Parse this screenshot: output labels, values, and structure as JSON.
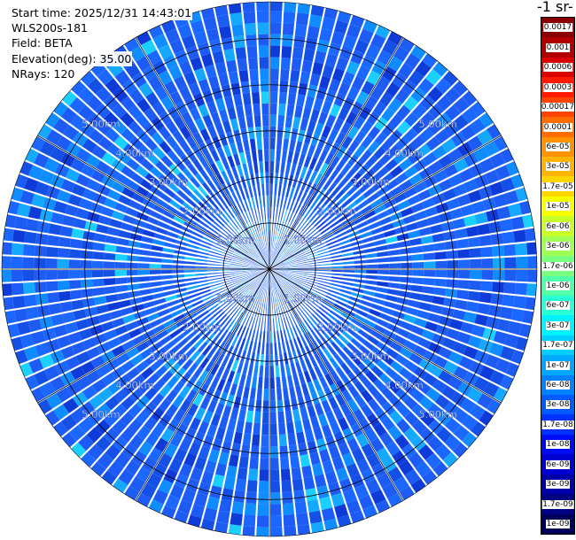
{
  "info": {
    "start_time": "Start time: 2025/12/31 14:43:01",
    "instrument": "WLS200s-181",
    "field": "Field: BETA",
    "elevation": "Elevation(deg): 35.00",
    "nrays": "NRays: 120"
  },
  "colorbar": {
    "title": "-1 sr-",
    "labels": [
      "0.0017",
      "0.001",
      "0.0006",
      "0.0003",
      "0.00017",
      "0.0001",
      "6e-05",
      "3e-05",
      "1.7e-05",
      "1e-05",
      "6e-06",
      "3e-06",
      "1.7e-06",
      "1e-06",
      "6e-07",
      "3e-07",
      "1.7e-07",
      "1e-07",
      "6e-08",
      "3e-08",
      "1.7e-08",
      "1e-08",
      "6e-09",
      "3e-09",
      "1.7e-09",
      "1e-09"
    ],
    "colors": [
      "#8a0000",
      "#b00000",
      "#d80000",
      "#ff1a00",
      "#ff4400",
      "#ff6d00",
      "#ff9200",
      "#ffb400",
      "#ffd500",
      "#f5ff00",
      "#c8ff2a",
      "#a0ff55",
      "#79ff80",
      "#50ffa8",
      "#28ffd4",
      "#00f4ff",
      "#00cfff",
      "#00a8ff",
      "#0081ff",
      "#005aff",
      "#0032ff",
      "#000cf5",
      "#0000d0",
      "#0000a8",
      "#000082",
      "#00005a"
    ]
  },
  "chart_data": {
    "type": "heatmap",
    "projection": "ppi-polar",
    "title": "",
    "nrays": 120,
    "range_max_km": 5.8,
    "range_rings_km": [
      1.0,
      2.0,
      3.0,
      4.0,
      5.0
    ],
    "ring_labels": [
      "1.00km",
      "2.00km",
      "3.00km",
      "4.00km",
      "5.00km"
    ],
    "gridlines_deg": [
      0,
      30,
      60,
      90,
      120,
      150,
      180,
      210,
      240,
      270,
      300,
      330
    ],
    "dominant_value_range": [
      "1e-08",
      "1e-07"
    ],
    "colormap": "jet"
  }
}
